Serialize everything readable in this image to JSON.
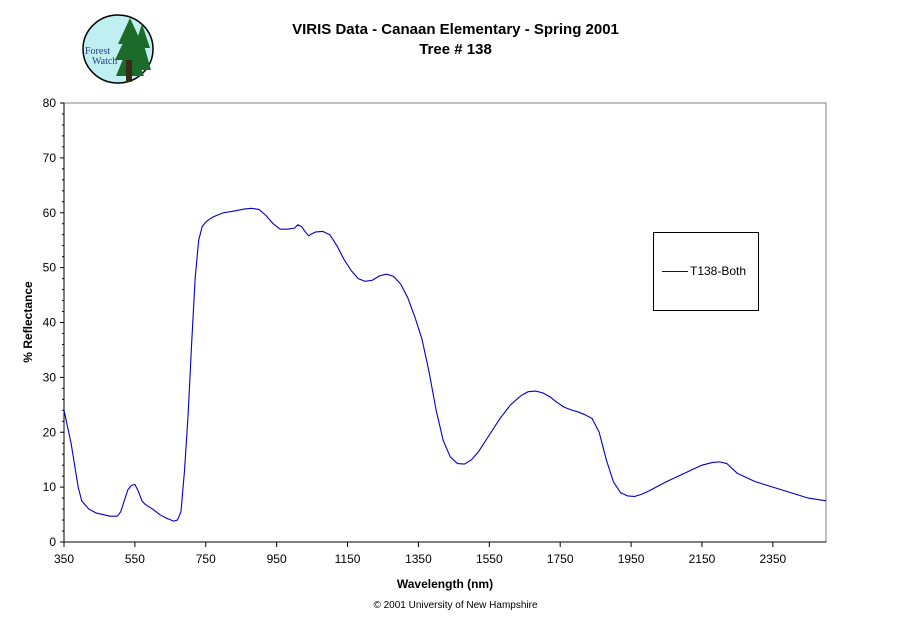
{
  "header": {
    "title_line1": "VIRIS Data - Canaan Elementary - Spring 2001",
    "title_line2": "Tree # 138",
    "logo_text_line1": "Forest",
    "logo_text_line2": "Watch"
  },
  "footer": {
    "copyright": "© 2001 University of New Hampshire"
  },
  "colors": {
    "series": "#0000cc",
    "logo_fill": "#bfeff0",
    "logo_tree": "#1d6b2a"
  },
  "chart_data": {
    "type": "line",
    "title": "VIRIS Data - Canaan Elementary - Spring 2001",
    "subtitle": "Tree # 138",
    "xlabel": "Wavelength (nm)",
    "ylabel": "% Reflectance",
    "xlim": [
      350,
      2500
    ],
    "ylim": [
      0,
      80
    ],
    "x_ticks": [
      350,
      550,
      750,
      950,
      1150,
      1350,
      1550,
      1750,
      1950,
      2150,
      2350
    ],
    "y_ticks": [
      0,
      10,
      20,
      30,
      40,
      50,
      60,
      70,
      80
    ],
    "grid": false,
    "legend_position": "right",
    "series": [
      {
        "name": "T138-Both",
        "x": [
          350,
          360,
          370,
          380,
          390,
          400,
          420,
          440,
          460,
          480,
          500,
          510,
          520,
          530,
          540,
          550,
          560,
          570,
          580,
          600,
          620,
          640,
          660,
          670,
          680,
          690,
          700,
          710,
          720,
          730,
          740,
          750,
          760,
          770,
          780,
          800,
          830,
          860,
          880,
          900,
          920,
          940,
          960,
          980,
          1000,
          1010,
          1020,
          1030,
          1040,
          1050,
          1060,
          1080,
          1100,
          1120,
          1140,
          1160,
          1180,
          1200,
          1220,
          1240,
          1260,
          1280,
          1300,
          1320,
          1340,
          1360,
          1380,
          1400,
          1420,
          1440,
          1460,
          1480,
          1500,
          1520,
          1550,
          1580,
          1610,
          1640,
          1660,
          1680,
          1700,
          1720,
          1740,
          1760,
          1780,
          1800,
          1820,
          1840,
          1860,
          1880,
          1900,
          1920,
          1940,
          1960,
          1980,
          2000,
          2050,
          2100,
          2150,
          2180,
          2200,
          2220,
          2250,
          2300,
          2350,
          2400,
          2450,
          2500
        ],
        "values": [
          24,
          21,
          18,
          14,
          10,
          7.5,
          6,
          5.3,
          5,
          4.7,
          4.7,
          5.5,
          7.5,
          9.5,
          10.3,
          10.5,
          9.2,
          7.5,
          6.8,
          6,
          5,
          4.3,
          3.8,
          4,
          5.5,
          13,
          23,
          36,
          48,
          55,
          57.5,
          58.3,
          58.8,
          59.2,
          59.5,
          60,
          60.3,
          60.7,
          60.8,
          60.6,
          59.5,
          58,
          57,
          57,
          57.2,
          57.8,
          57.5,
          56.6,
          55.8,
          56.2,
          56.5,
          56.6,
          56,
          54,
          51.5,
          49.5,
          48,
          47.5,
          47.7,
          48.5,
          48.8,
          48.4,
          47,
          44.5,
          41,
          37,
          31,
          24,
          18.5,
          15.5,
          14.3,
          14.2,
          15,
          16.5,
          19.5,
          22.5,
          25,
          26.7,
          27.4,
          27.5,
          27.2,
          26.5,
          25.5,
          24.6,
          24.1,
          23.7,
          23.2,
          22.5,
          20,
          15,
          11,
          9,
          8.4,
          8.3,
          8.7,
          9.3,
          11,
          12.5,
          14,
          14.5,
          14.6,
          14.3,
          12.5,
          11,
          10,
          9,
          8,
          7.5
        ]
      }
    ]
  }
}
